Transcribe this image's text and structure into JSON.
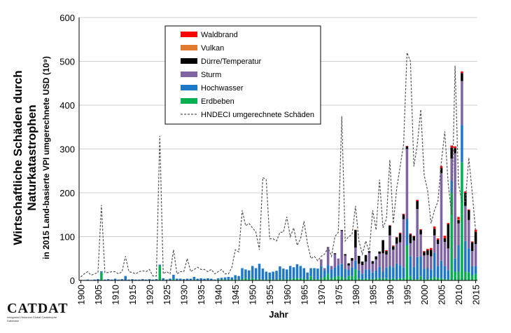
{
  "chart_data": {
    "type": "bar",
    "stacked": true,
    "title": "",
    "ylabel_line1": "Wirtschaftliche Schäden durch",
    "ylabel_line2": "Naturkatastrophen",
    "ylabel_line3": "in 2015 Land-basierte VPI umgerechnete USD (10⁹)",
    "xlabel": "Jahr",
    "ylim": [
      0,
      600
    ],
    "yticks": [
      0,
      100,
      200,
      300,
      400,
      500,
      600
    ],
    "xlim": [
      1900,
      2015
    ],
    "xticks": [
      1900,
      1905,
      1910,
      1915,
      1920,
      1925,
      1930,
      1935,
      1940,
      1945,
      1950,
      1955,
      1960,
      1965,
      1970,
      1975,
      1980,
      1985,
      1990,
      1995,
      2000,
      2005,
      2010,
      2015
    ],
    "grid": "horizontal",
    "legend_position": "top-center",
    "years_start": 1900,
    "series": [
      {
        "name": "Waldbrand",
        "color": "#ff0000",
        "values": [
          0,
          0,
          0,
          0,
          0,
          0,
          0,
          0,
          0,
          0,
          0,
          0,
          0,
          0,
          0,
          0,
          0,
          0,
          0,
          0,
          0,
          0,
          0,
          0,
          0,
          0,
          0,
          0,
          0,
          0,
          0,
          0,
          0,
          0,
          0,
          0,
          0,
          0,
          0,
          0,
          0,
          0,
          0,
          0,
          0,
          0,
          0,
          0,
          0,
          0,
          0,
          0,
          0,
          0,
          0,
          0,
          0,
          0,
          0,
          0,
          0,
          0,
          0,
          0,
          0,
          0,
          0,
          0,
          0,
          0,
          0,
          0,
          0,
          0,
          0,
          0,
          0,
          0,
          0,
          0,
          0,
          0,
          0,
          0,
          0,
          0,
          0,
          0,
          0,
          2,
          1,
          1,
          1,
          2,
          2,
          1,
          2,
          1,
          3,
          2,
          2,
          3,
          4,
          5,
          3,
          4,
          6,
          3,
          5,
          4,
          6,
          4,
          3,
          2,
          2,
          5
        ]
      },
      {
        "name": "Vulkan",
        "color": "#e07a30",
        "values": [
          0,
          0,
          0,
          0,
          0,
          0,
          0,
          0,
          0,
          0,
          0,
          0,
          0,
          0,
          0,
          0,
          0,
          0,
          0,
          0,
          0,
          0,
          0,
          0,
          0,
          0,
          0,
          0,
          0,
          0,
          0,
          0,
          0,
          0,
          0,
          0,
          0,
          0,
          0,
          0,
          0,
          0,
          0,
          0,
          0,
          0,
          0,
          0,
          0,
          0,
          0,
          0,
          0,
          0,
          0,
          0,
          0,
          0,
          0,
          0,
          0,
          0,
          0,
          0,
          0,
          0,
          0,
          0,
          0,
          0,
          0,
          0,
          0,
          0,
          0,
          0,
          0,
          0,
          0,
          0,
          1,
          0,
          0,
          0,
          0,
          0,
          0,
          0,
          0,
          0,
          0,
          1,
          0,
          0,
          0,
          0,
          0,
          0,
          0,
          0,
          0,
          0,
          0,
          0,
          0,
          0,
          0,
          0,
          0,
          0,
          1,
          0,
          0,
          0,
          0,
          0
        ]
      },
      {
        "name": "Dürre/Temperatur",
        "color": "#000000",
        "values": [
          0,
          0,
          0,
          0,
          0,
          0,
          0,
          0,
          0,
          0,
          0,
          0,
          0,
          0,
          0,
          0,
          0,
          0,
          0,
          0,
          0,
          0,
          0,
          0,
          0,
          0,
          0,
          0,
          0,
          0,
          0,
          0,
          0,
          0,
          0,
          0,
          0,
          0,
          0,
          0,
          0,
          0,
          0,
          0,
          0,
          0,
          0,
          0,
          0,
          0,
          0,
          0,
          0,
          0,
          0,
          0,
          0,
          0,
          0,
          0,
          0,
          0,
          0,
          0,
          0,
          0,
          0,
          0,
          0,
          0,
          0,
          0,
          1,
          0,
          2,
          0,
          2,
          3,
          5,
          6,
          40,
          18,
          8,
          15,
          4,
          6,
          7,
          5,
          30,
          8,
          22,
          8,
          14,
          20,
          10,
          6,
          20,
          10,
          18,
          10,
          8,
          11,
          15,
          15,
          10,
          12,
          8,
          55,
          25,
          12,
          8,
          18,
          30,
          22,
          20,
          28
        ]
      },
      {
        "name": "Sturm",
        "color": "#8064a2",
        "values": [
          0,
          0,
          0,
          0,
          0,
          0,
          0,
          0,
          0,
          0,
          0,
          0,
          0,
          0,
          0,
          0,
          0,
          0,
          0,
          0,
          0,
          0,
          0,
          0,
          0,
          0,
          0,
          0,
          0,
          0,
          0,
          0,
          0,
          0,
          0,
          0,
          0,
          0,
          0,
          0,
          0,
          0,
          0,
          0,
          0,
          0,
          0,
          0,
          0,
          0,
          0,
          0,
          0,
          0,
          0,
          0,
          0,
          0,
          0,
          0,
          0,
          0,
          0,
          0,
          0,
          0,
          0,
          0,
          0,
          0,
          15,
          5,
          40,
          8,
          30,
          15,
          75,
          30,
          10,
          15,
          30,
          15,
          20,
          18,
          38,
          20,
          25,
          30,
          42,
          30,
          70,
          40,
          45,
          52,
          110,
          160,
          30,
          60,
          110,
          50,
          30,
          30,
          30,
          40,
          50,
          200,
          55,
          50,
          50,
          240,
          50,
          100,
          80,
          65,
          35,
          50
        ]
      },
      {
        "name": "Hochwasser",
        "color": "#1f77c8",
        "values": [
          1,
          1,
          2,
          1,
          2,
          3,
          3,
          2,
          3,
          2,
          4,
          2,
          3,
          10,
          2,
          3,
          2,
          2,
          3,
          2,
          3,
          2,
          3,
          3,
          5,
          2,
          4,
          10,
          4,
          4,
          3,
          4,
          4,
          6,
          4,
          5,
          4,
          5,
          4,
          2,
          3,
          4,
          5,
          6,
          5,
          10,
          8,
          25,
          20,
          20,
          28,
          25,
          35,
          25,
          18,
          15,
          18,
          20,
          28,
          25,
          22,
          30,
          25,
          32,
          28,
          24,
          15,
          18,
          25,
          24,
          28,
          15,
          20,
          20,
          22,
          25,
          30,
          22,
          14,
          20,
          20,
          18,
          12,
          20,
          22,
          15,
          18,
          26,
          15,
          24,
          30,
          25,
          36,
          30,
          25,
          60,
          45,
          28,
          50,
          45,
          24,
          25,
          20,
          55,
          28,
          40,
          30,
          20,
          28,
          30,
          60,
          85,
          70,
          55,
          20,
          18
        ]
      },
      {
        "name": "Erdbeben",
        "color": "#00b050",
        "values": [
          0,
          0,
          0,
          0,
          0,
          0,
          18,
          0,
          0,
          0,
          0,
          0,
          0,
          0,
          0,
          0,
          0,
          0,
          0,
          0,
          0,
          0,
          0,
          33,
          0,
          0,
          0,
          3,
          0,
          0,
          0,
          0,
          0,
          2,
          0,
          0,
          0,
          0,
          0,
          0,
          2,
          2,
          2,
          2,
          2,
          2,
          2,
          3,
          5,
          3,
          5,
          3,
          3,
          2,
          2,
          3,
          2,
          2,
          4,
          2,
          3,
          3,
          5,
          5,
          5,
          4,
          3,
          10,
          3,
          3,
          5,
          8,
          15,
          5,
          8,
          10,
          8,
          5,
          10,
          10,
          25,
          5,
          3,
          5,
          3,
          3,
          5,
          5,
          5,
          5,
          3,
          5,
          3,
          5,
          5,
          80,
          10,
          3,
          3,
          10,
          3,
          3,
          5,
          8,
          5,
          5,
          3,
          3,
          200,
          20,
          20,
          270,
          20,
          18,
          12,
          15
        ]
      }
    ],
    "line_series": {
      "name": "HNDECI umgerechnete Schäden",
      "style": "dashed",
      "color": "#555555",
      "values": [
        8,
        15,
        20,
        12,
        15,
        18,
        172,
        18,
        18,
        20,
        20,
        15,
        20,
        55,
        20,
        18,
        15,
        20,
        22,
        20,
        25,
        10,
        10,
        330,
        15,
        20,
        15,
        70,
        15,
        20,
        20,
        50,
        20,
        25,
        30,
        25,
        25,
        20,
        25,
        15,
        20,
        25,
        15,
        15,
        30,
        70,
        65,
        160,
        125,
        130,
        120,
        110,
        70,
        235,
        230,
        95,
        95,
        90,
        110,
        110,
        145,
        100,
        120,
        80,
        95,
        135,
        85,
        50,
        55,
        45,
        55,
        60,
        75,
        55,
        100,
        110,
        375,
        90,
        100,
        105,
        170,
        90,
        60,
        90,
        65,
        160,
        115,
        230,
        120,
        140,
        275,
        130,
        210,
        260,
        310,
        520,
        500,
        260,
        310,
        390,
        240,
        205,
        130,
        160,
        180,
        270,
        340,
        220,
        150,
        490,
        220,
        180,
        180,
        280,
        200,
        110
      ]
    }
  },
  "logo": {
    "name": "CATDAT",
    "sub": "Integrated Historical Global Catastrophe Database"
  }
}
